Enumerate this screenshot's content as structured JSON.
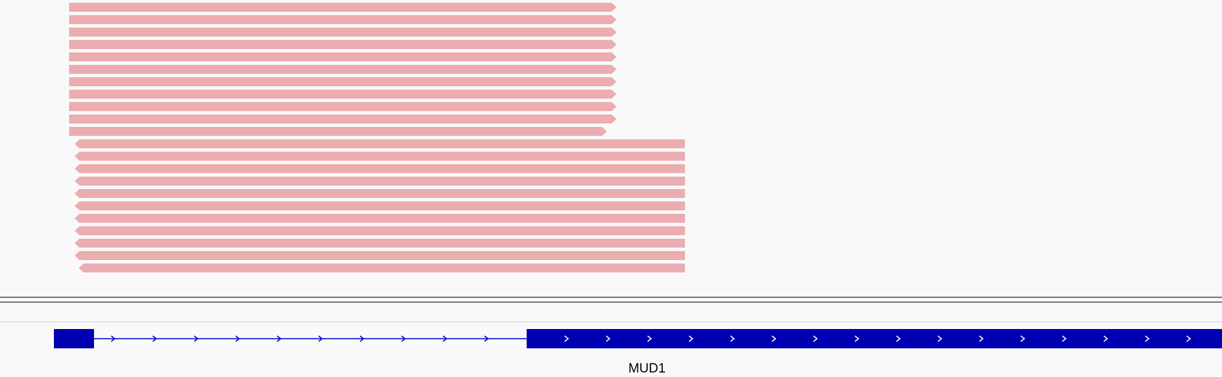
{
  "colors": {
    "background": "#f9f9f9",
    "read_fill": "#ebadb0",
    "gene_fill": "#0000b3",
    "intron_arrow": "#0000cc",
    "exon_arrow": "#ffffff"
  },
  "alignment_track": {
    "forward_reads": {
      "count": 11,
      "strand": "+"
    },
    "reverse_reads": {
      "count": 11,
      "strand": "-"
    }
  },
  "gene_track": {
    "gene_name": "MUD1",
    "strand": "+",
    "features": [
      "exon",
      "intron",
      "exon"
    ]
  }
}
